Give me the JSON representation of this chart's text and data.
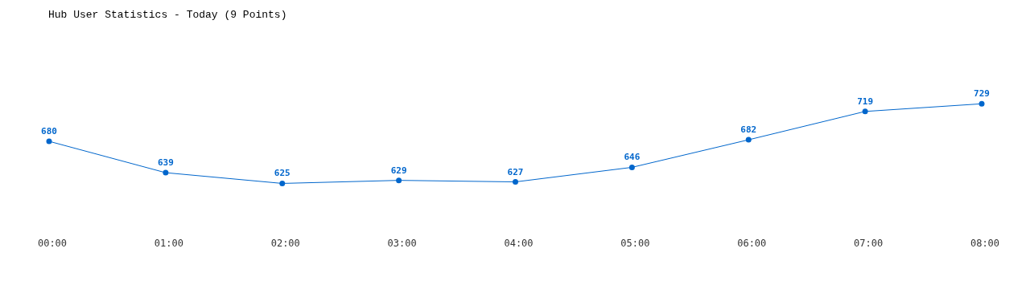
{
  "chart_data": {
    "type": "line",
    "title": "Hub User Statistics - Today (9 Points)",
    "categories": [
      "00:00",
      "01:00",
      "02:00",
      "03:00",
      "04:00",
      "05:00",
      "06:00",
      "07:00",
      "08:00"
    ],
    "series": [
      {
        "color": "#0066cc",
        "values": [
          680,
          639,
          625,
          629,
          627,
          646,
          682,
          719,
          729
        ]
      }
    ],
    "data_labels": true,
    "marker": "circle"
  }
}
